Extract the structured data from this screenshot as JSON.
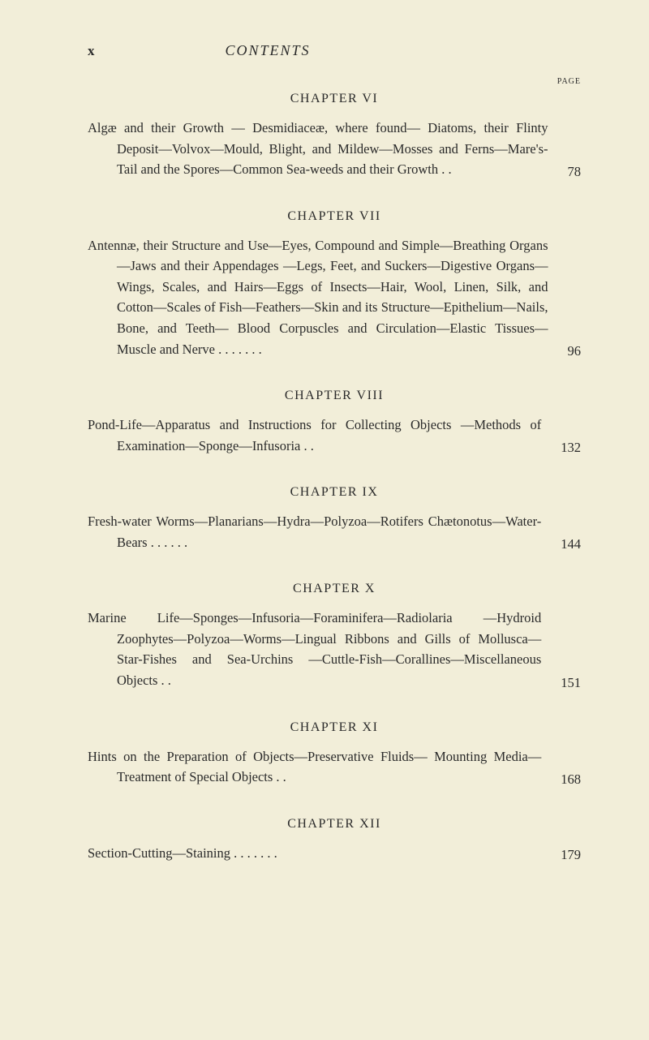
{
  "page": {
    "roman": "x",
    "title": "CONTENTS",
    "page_label": "PAGE",
    "background_color": "#f2eed9",
    "text_color": "#2a2a2a",
    "body_fontsize": 16.5,
    "heading_fontsize": 16
  },
  "chapters": [
    {
      "heading": "CHAPTER VI",
      "text": "Algæ and their Growth — Desmidiaceæ, where found— Diatoms, their Flinty Deposit—Volvox—Mould, Blight, and Mildew—Mosses and Ferns—Mare's-Tail and the Spores—Common Sea-weeds and their Growth   .   .",
      "page": "78",
      "show_page_label": true
    },
    {
      "heading": "CHAPTER VII",
      "text": "Antennæ, their Structure and Use—Eyes, Compound and Simple—Breathing Organs—Jaws and their Appendages —Legs, Feet, and Suckers—Digestive Organs—Wings, Scales, and Hairs—Eggs of Insects—Hair, Wool, Linen, Silk, and Cotton—Scales of Fish—Feathers—Skin and its Structure—Epithelium—Nails, Bone, and Teeth— Blood Corpuscles and Circulation—Elastic Tissues— Muscle and Nerve   .   .   .   .   .   .   .",
      "page": "96"
    },
    {
      "heading": "CHAPTER VIII",
      "text": "Pond-Life—Apparatus and Instructions for Collecting Objects —Methods of Examination—Sponge—Infusoria   .   .",
      "page": "132"
    },
    {
      "heading": "CHAPTER IX",
      "text": "Fresh-water Worms—Planarians—Hydra—Polyzoa—Rotifers Chætonotus—Water-Bears   .   .   .   .   .   .",
      "page": "144"
    },
    {
      "heading": "CHAPTER X",
      "text": "Marine Life—Sponges—Infusoria—Foraminifera—Radiolaria —Hydroid Zoophytes—Polyzoa—Worms—Lingual Ribbons and Gills of Mollusca—Star-Fishes and Sea-Urchins —Cuttle-Fish—Corallines—Miscellaneous Objects .   .",
      "page": "151"
    },
    {
      "heading": "CHAPTER XI",
      "text": "Hints on the Preparation of Objects—Preservative Fluids— Mounting Media—Treatment of Special Objects   .   .",
      "page": "168"
    },
    {
      "heading": "CHAPTER XII",
      "text": "Section-Cutting—Staining   .   .   .   .   .   .   .",
      "page": "179"
    }
  ]
}
